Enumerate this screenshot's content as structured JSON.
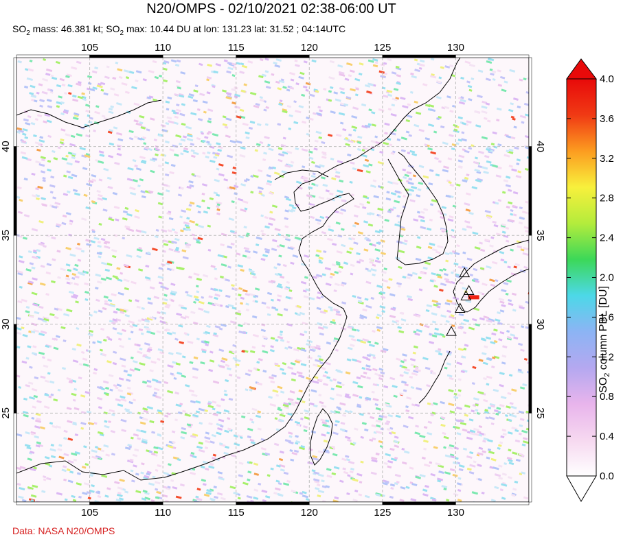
{
  "title": "N20/OMPS - 02/10/2021 02:38-06:00 UT",
  "subtitle": {
    "mass_prefix": "SO",
    "mass_sub": "2",
    "mass_text": " mass: 46.381 kt; SO",
    "max_sub": "2",
    "max_text": " max: 10.44 DU at lon: 131.23 lat: 31.52 ; 04:14UTC"
  },
  "credit": "Data: NASA N20/OMPS",
  "map": {
    "lon_ticks": [
      "105",
      "110",
      "115",
      "120",
      "125",
      "130"
    ],
    "lat_ticks": [
      "40",
      "35",
      "30",
      "25"
    ],
    "lon_range": [
      100,
      135
    ],
    "lat_range": [
      20,
      45
    ],
    "volcano_markers": [
      {
        "lon": 130.6,
        "lat": 32.9
      },
      {
        "lon": 130.9,
        "lat": 31.9
      },
      {
        "lon": 130.7,
        "lat": 31.6
      },
      {
        "lon": 130.3,
        "lat": 30.9
      },
      {
        "lon": 129.7,
        "lat": 29.6
      }
    ],
    "max_location": {
      "lon": 131.23,
      "lat": 31.52
    }
  },
  "colorbar": {
    "label_prefix": "SO",
    "label_sub": "2",
    "label_text": " column PBL [DU]",
    "ticks": [
      "4.0",
      "3.6",
      "3.2",
      "2.8",
      "2.4",
      "2.0",
      "1.6",
      "1.2",
      "0.8",
      "0.4",
      "0.0"
    ],
    "colors": [
      "#ffffff",
      "#f6d8f0",
      "#e8b4ec",
      "#b4a8f0",
      "#8cb4f4",
      "#4cd8e8",
      "#3cd858",
      "#b4ec3c",
      "#f8f03c",
      "#fc9c20",
      "#f03a14",
      "#e80a0a"
    ]
  }
}
